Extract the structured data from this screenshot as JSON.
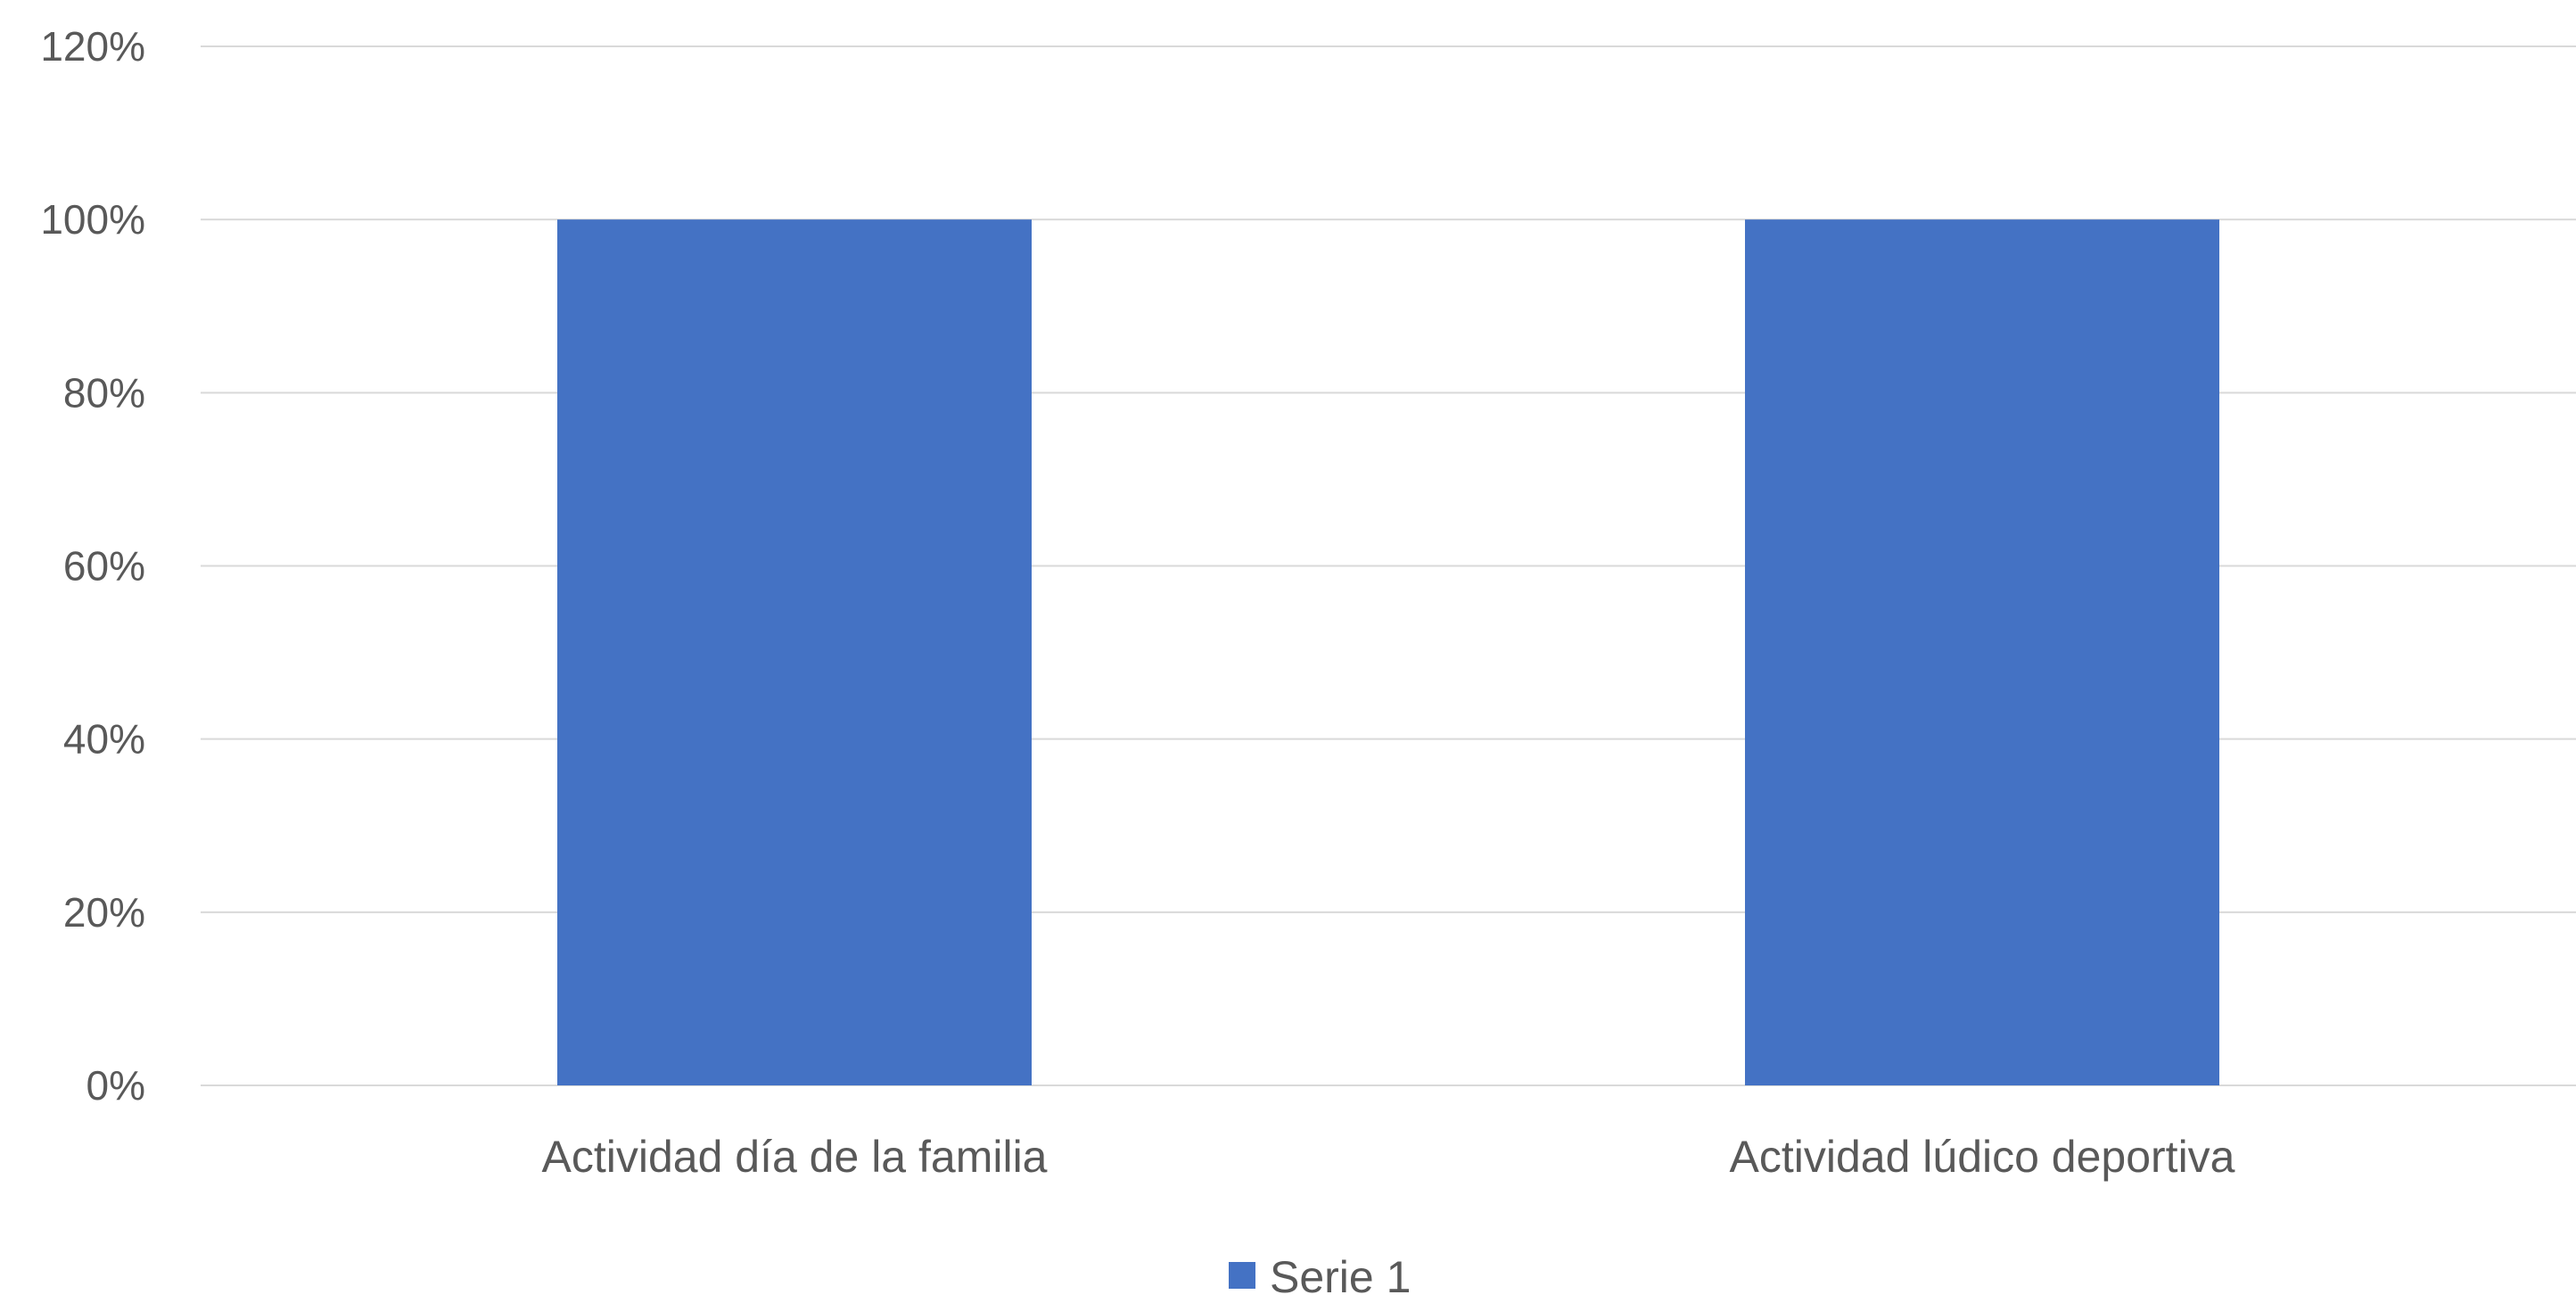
{
  "chart_data": {
    "type": "bar",
    "categories": [
      "Actividad día de la familia",
      "Actividad lúdico deportiva"
    ],
    "series": [
      {
        "name": "Serie 1",
        "values": [
          1.0,
          1.0
        ],
        "color": "#4472c4"
      }
    ],
    "yticks": [
      "0%",
      "20%",
      "40%",
      "60%",
      "80%",
      "100%",
      "120%"
    ],
    "ylim": [
      0,
      1.2
    ],
    "ystep": 0.2,
    "grid": true,
    "legend": "bottom-center",
    "title": "",
    "xlabel": "",
    "ylabel": ""
  }
}
